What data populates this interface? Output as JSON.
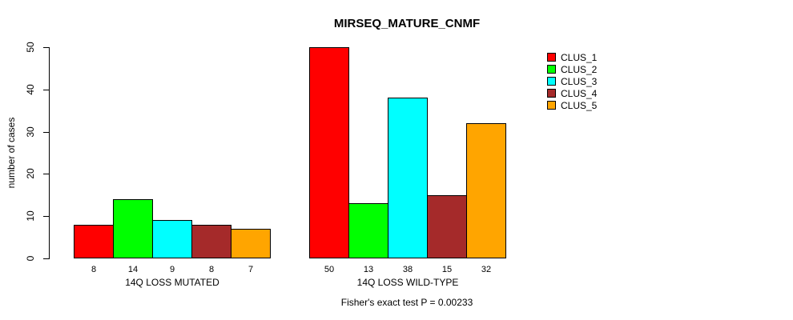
{
  "chart_data": {
    "type": "bar",
    "title": "MIRSEQ_MATURE_CNMF",
    "ylabel": "number of cases",
    "xlabel": "",
    "ylim": [
      0,
      50
    ],
    "y_ticks": [
      0,
      10,
      20,
      30,
      40,
      50
    ],
    "grid": false,
    "legend_position": "right",
    "series": [
      {
        "name": "CLUS_1",
        "color": "#FF0000"
      },
      {
        "name": "CLUS_2",
        "color": "#00FF00"
      },
      {
        "name": "CLUS_3",
        "color": "#00FFFF"
      },
      {
        "name": "CLUS_4",
        "color": "#A52A2A"
      },
      {
        "name": "CLUS_5",
        "color": "#FFA500"
      }
    ],
    "groups": [
      {
        "label": "14Q LOSS MUTATED",
        "values": [
          8,
          14,
          9,
          8,
          7
        ]
      },
      {
        "label": "14Q LOSS WILD-TYPE",
        "values": [
          50,
          13,
          38,
          15,
          32
        ]
      }
    ],
    "bar_value_labels_shown": true,
    "caption": "Fisher's exact test P = 0.00233",
    "colors": {
      "axis": "#000000",
      "background": "#FFFFFF",
      "bar_border": "#000000"
    }
  }
}
